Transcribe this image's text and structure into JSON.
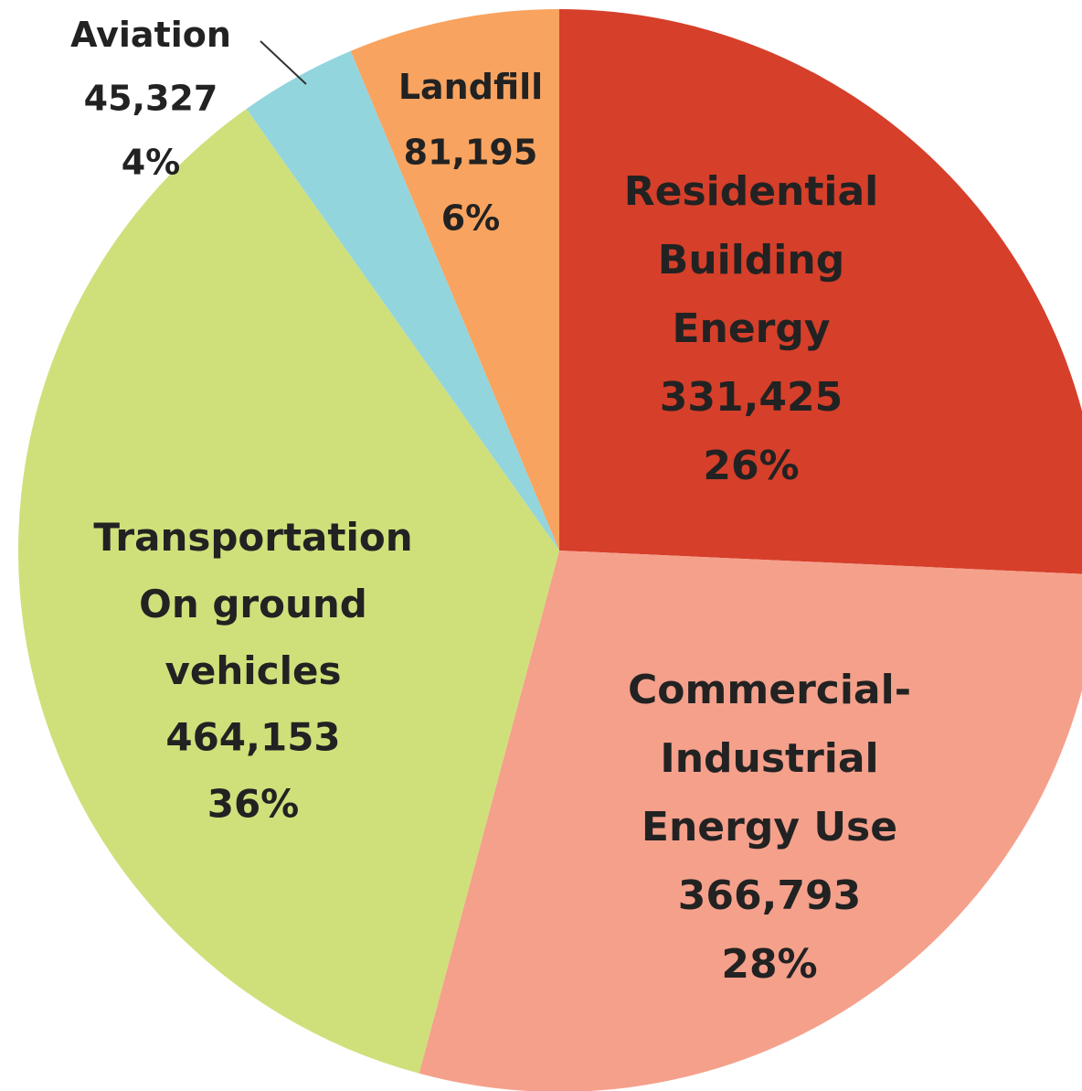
{
  "chart_data": {
    "type": "pie",
    "categories": [
      "Residential\nBuilding\nEnergy",
      "Commercial-\nIndustrial\nEnergy Use",
      "Transportation\nOn ground\nvehicles",
      "Aviation",
      "Landfill"
    ],
    "values": [
      331425,
      366793,
      464153,
      45327,
      81195
    ],
    "value_labels": [
      "331,425",
      "366,793",
      "464,153",
      "45,327",
      "81,195"
    ],
    "percent_labels": [
      "26%",
      "28%",
      "36%",
      "4%",
      "6%"
    ],
    "colors": [
      "#d63f2a",
      "#f5a08b",
      "#cfe07b",
      "#93d5dd",
      "#f8a35f"
    ]
  }
}
